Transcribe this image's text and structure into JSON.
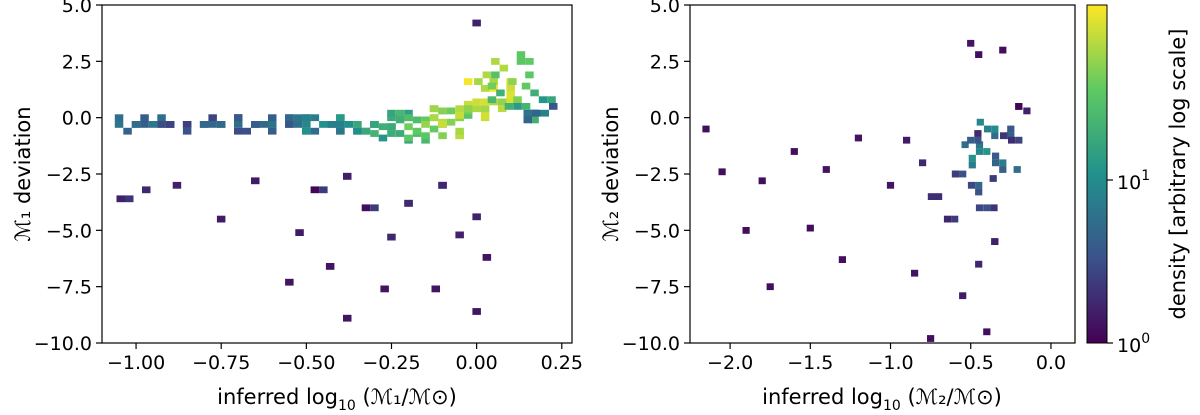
{
  "chart_data": [
    {
      "type": "heatmap",
      "title": "",
      "xlabel_prefix": "inferred log",
      "xlabel_sub": "10",
      "xlabel_arg": " (ℳ₁/ℳ⊙)",
      "ylabel": "ℳ₁ deviation",
      "xlim": [
        -1.1,
        0.28
      ],
      "ylim": [
        -10.0,
        5.0
      ],
      "xticks": [
        -1.0,
        -0.75,
        -0.5,
        -0.25,
        0.0,
        0.25
      ],
      "xtick_labels": [
        "−1.00",
        "−0.75",
        "−0.50",
        "−0.25",
        "0.00",
        "0.25"
      ],
      "yticks": [
        5.0,
        2.5,
        0.0,
        -2.5,
        -5.0,
        -7.5,
        -10.0
      ],
      "ytick_labels": [
        "5.0",
        "2.5",
        "0.0",
        "−2.5",
        "−5.0",
        "−7.5",
        "−10.0"
      ],
      "bin_size": [
        0.025,
        0.3
      ],
      "description": "2D histogram density of M1 deviation vs inferred log10 M1; dense ridge near 0 rising toward x≈0.05, scattered sparse bins below",
      "bins": [
        [
          -1.0,
          -0.3,
          2.2
        ],
        [
          -0.95,
          -0.3,
          2.0
        ],
        [
          -0.9,
          -0.3,
          1.8
        ],
        [
          -0.85,
          -0.3,
          1.8
        ],
        [
          -0.8,
          -0.3,
          1.7
        ],
        [
          -0.75,
          -0.3,
          1.7
        ],
        [
          -0.7,
          -0.3,
          1.8
        ],
        [
          -0.65,
          -0.3,
          1.9
        ],
        [
          -0.6,
          -0.3,
          2.0
        ],
        [
          -0.55,
          -0.3,
          2.1
        ],
        [
          -0.5,
          -0.3,
          2.3
        ],
        [
          -0.45,
          -0.3,
          2.5
        ],
        [
          -0.4,
          -0.3,
          2.7
        ],
        [
          -0.35,
          -0.3,
          3.0
        ],
        [
          -0.3,
          -0.3,
          3.3
        ],
        [
          -0.25,
          -0.4,
          3.6
        ],
        [
          -0.2,
          -0.4,
          3.9
        ],
        [
          -0.15,
          -0.3,
          4.2
        ],
        [
          -0.1,
          -0.2,
          4.5
        ],
        [
          -0.05,
          0.0,
          4.7
        ],
        [
          0.0,
          0.4,
          5.0
        ],
        [
          0.05,
          1.3,
          5.0
        ],
        [
          0.08,
          2.2,
          4.4
        ],
        [
          0.12,
          0.8,
          4.0
        ],
        [
          0.17,
          0.2,
          3.2
        ],
        [
          0.2,
          0.2,
          2.2
        ],
        [
          -1.02,
          -3.6,
          0.8
        ],
        [
          -0.97,
          -3.2,
          0.6
        ],
        [
          -0.88,
          -3.0,
          0.5
        ],
        [
          -0.75,
          -4.5,
          0.4
        ],
        [
          -0.52,
          -5.1,
          0.4
        ],
        [
          -0.45,
          -3.2,
          0.9
        ],
        [
          -0.38,
          -2.6,
          1.1
        ],
        [
          -0.3,
          -4.0,
          0.9
        ],
        [
          -0.25,
          -5.3,
          0.6
        ],
        [
          -0.2,
          -3.8,
          0.7
        ],
        [
          -0.1,
          -3.0,
          0.8
        ],
        [
          -0.05,
          -5.2,
          0.5
        ],
        [
          0.0,
          -4.4,
          0.5
        ],
        [
          0.03,
          -6.2,
          0.3
        ],
        [
          -0.12,
          -7.6,
          0.3
        ],
        [
          -0.27,
          -7.6,
          0.3
        ],
        [
          -0.43,
          -6.6,
          0.3
        ],
        [
          -0.38,
          -8.9,
          0.3
        ],
        [
          0.0,
          -8.6,
          0.3
        ],
        [
          -0.55,
          -7.3,
          0.3
        ],
        [
          0.0,
          4.2,
          0.5
        ],
        [
          -0.65,
          -2.8,
          0.4
        ]
      ]
    },
    {
      "type": "heatmap",
      "title": "",
      "xlabel_prefix": "inferred log",
      "xlabel_sub": "10",
      "xlabel_arg": " (ℳ₂/ℳ⊙)",
      "ylabel": "ℳ₂ deviation",
      "xlim": [
        -2.25,
        0.15
      ],
      "ylim": [
        -10.0,
        5.0
      ],
      "xticks": [
        -2.0,
        -1.5,
        -1.0,
        -0.5,
        0.0
      ],
      "xtick_labels": [
        "−2.0",
        "−1.5",
        "−1.0",
        "−0.5",
        "0.0"
      ],
      "yticks": [
        5.0,
        2.5,
        0.0,
        -2.5,
        -5.0,
        -7.5,
        -10.0
      ],
      "ytick_labels": [
        "5.0",
        "2.5",
        "0.0",
        "−2.5",
        "−5.0",
        "−7.5",
        "−10.0"
      ],
      "bin_size": [
        0.045,
        0.3
      ],
      "description": "2D histogram density of M2 deviation vs inferred log10 M2; broad cloud centred near x≈-0.4, sparse scatter to x≈-2.1",
      "bins": [
        [
          -0.4,
          -1.5,
          2.6
        ],
        [
          -0.35,
          -0.5,
          2.4
        ],
        [
          -0.3,
          -2.0,
          2.1
        ],
        [
          -0.45,
          -3.0,
          1.7
        ],
        [
          -0.5,
          -1.0,
          1.5
        ],
        [
          -0.25,
          -0.8,
          1.5
        ],
        [
          -0.55,
          -2.5,
          1.2
        ],
        [
          -0.4,
          -4.0,
          1.2
        ],
        [
          -0.6,
          -4.5,
          0.9
        ],
        [
          -0.35,
          -5.5,
          0.9
        ],
        [
          -0.7,
          -3.5,
          0.7
        ],
        [
          -0.2,
          0.5,
          0.9
        ],
        [
          -0.8,
          -2.0,
          0.6
        ],
        [
          -0.45,
          -6.5,
          0.6
        ],
        [
          -0.9,
          -1.0,
          0.4
        ],
        [
          -1.0,
          -3.0,
          0.3
        ],
        [
          -1.2,
          -0.9,
          0.3
        ],
        [
          -1.4,
          -2.3,
          0.3
        ],
        [
          -1.6,
          -1.5,
          0.2
        ],
        [
          -1.8,
          -2.8,
          0.2
        ],
        [
          -2.05,
          -2.4,
          0.2
        ],
        [
          -2.15,
          -0.5,
          0.2
        ],
        [
          -1.5,
          -4.9,
          0.2
        ],
        [
          -1.9,
          -5.0,
          0.2
        ],
        [
          -1.75,
          -7.5,
          0.2
        ],
        [
          -1.3,
          -6.3,
          0.2
        ],
        [
          -0.85,
          -6.9,
          0.3
        ],
        [
          -0.55,
          -7.9,
          0.4
        ],
        [
          -0.4,
          -9.5,
          0.2
        ],
        [
          -0.75,
          -9.8,
          0.2
        ],
        [
          -0.5,
          3.3,
          0.3
        ],
        [
          -0.45,
          2.8,
          0.2
        ],
        [
          -0.3,
          3.0,
          0.2
        ],
        [
          -0.2,
          -1.0,
          1.0
        ],
        [
          -0.15,
          0.3,
          0.5
        ]
      ]
    }
  ],
  "colorbar": {
    "label": "density [arbitrary log scale]",
    "tick_base": "10",
    "ticks": [
      {
        "exp": "0",
        "value": 1
      },
      {
        "exp": "1",
        "value": 10
      }
    ],
    "colors": [
      "#440154",
      "#3b528b",
      "#21918c",
      "#5ec962",
      "#fde725"
    ]
  }
}
